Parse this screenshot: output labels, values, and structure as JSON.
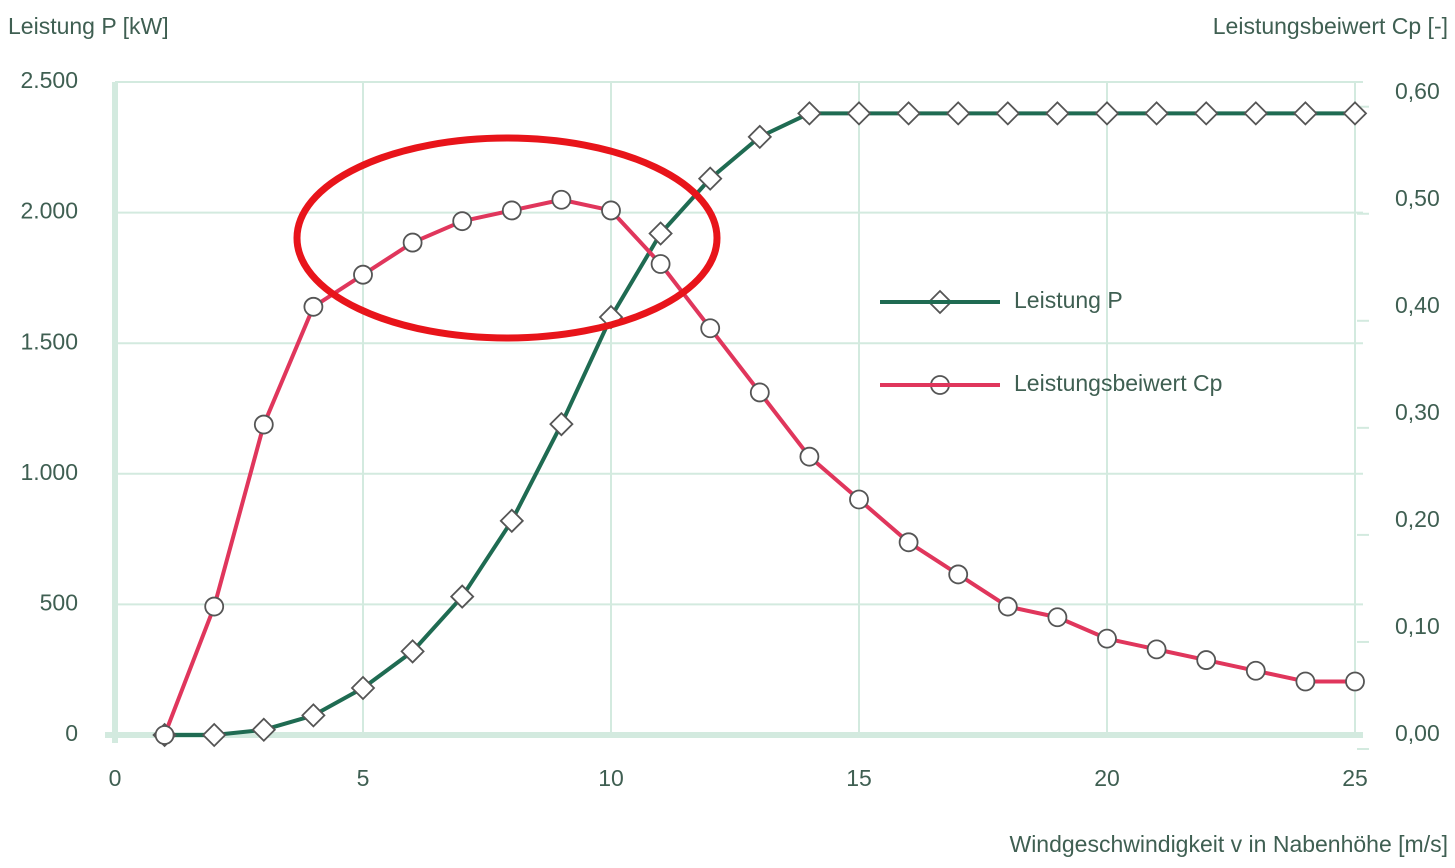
{
  "chart_data": {
    "type": "line",
    "ylabel": "Leistung P [kW]",
    "y2label": "Leistungsbeiwert Cp [-]",
    "xlabel": "Windgeschwindigkeit v in Nabenhöhe [m/s]",
    "x": [
      1,
      2,
      3,
      4,
      5,
      6,
      7,
      8,
      9,
      10,
      11,
      12,
      13,
      14,
      15,
      16,
      17,
      18,
      19,
      20,
      21,
      22,
      23,
      24,
      25
    ],
    "series": [
      {
        "name": "Leistung P",
        "color": "#1f6b52",
        "marker": "diamond",
        "values": [
          0,
          0,
          20,
          75,
          180,
          320,
          530,
          820,
          1190,
          1600,
          1920,
          2130,
          2290,
          2380,
          2380,
          2380,
          2380,
          2380,
          2380,
          2380,
          2380,
          2380,
          2380,
          2380,
          2380
        ]
      },
      {
        "name": "Leistungsbeiwert Cp",
        "color": "#e0365c",
        "marker": "circle",
        "axis": "y2",
        "values": [
          0,
          0.12,
          0.29,
          0.4,
          0.43,
          0.46,
          0.48,
          0.49,
          0.5,
          0.49,
          0.44,
          0.38,
          0.32,
          0.26,
          0.22,
          0.18,
          0.15,
          0.12,
          0.11,
          0.09,
          0.08,
          0.07,
          0.06,
          0.05,
          0.05
        ]
      }
    ],
    "xlim": [
      0,
      25
    ],
    "xticks": [
      0,
      5,
      10,
      15,
      20,
      25
    ],
    "ylim": [
      0,
      2500
    ],
    "yticks": [
      0,
      500,
      {
        "value": 1000,
        "label": "1.000"
      },
      {
        "value": 1500,
        "label": "1.500"
      },
      {
        "value": 2000,
        "label": "2.000"
      },
      {
        "value": 2500,
        "label": "2.500"
      }
    ],
    "y2lim": [
      0,
      0.61
    ],
    "y2ticks": [
      {
        "value": 0,
        "label": "0,00"
      },
      {
        "value": 0.1,
        "label": "0,10"
      },
      {
        "value": 0.2,
        "label": "0,20"
      },
      {
        "value": 0.3,
        "label": "0,30"
      },
      {
        "value": 0.4,
        "label": "0,40"
      },
      {
        "value": 0.5,
        "label": "0,50"
      },
      {
        "value": 0.6,
        "label": "0,60"
      }
    ],
    "grid": true
  }
}
